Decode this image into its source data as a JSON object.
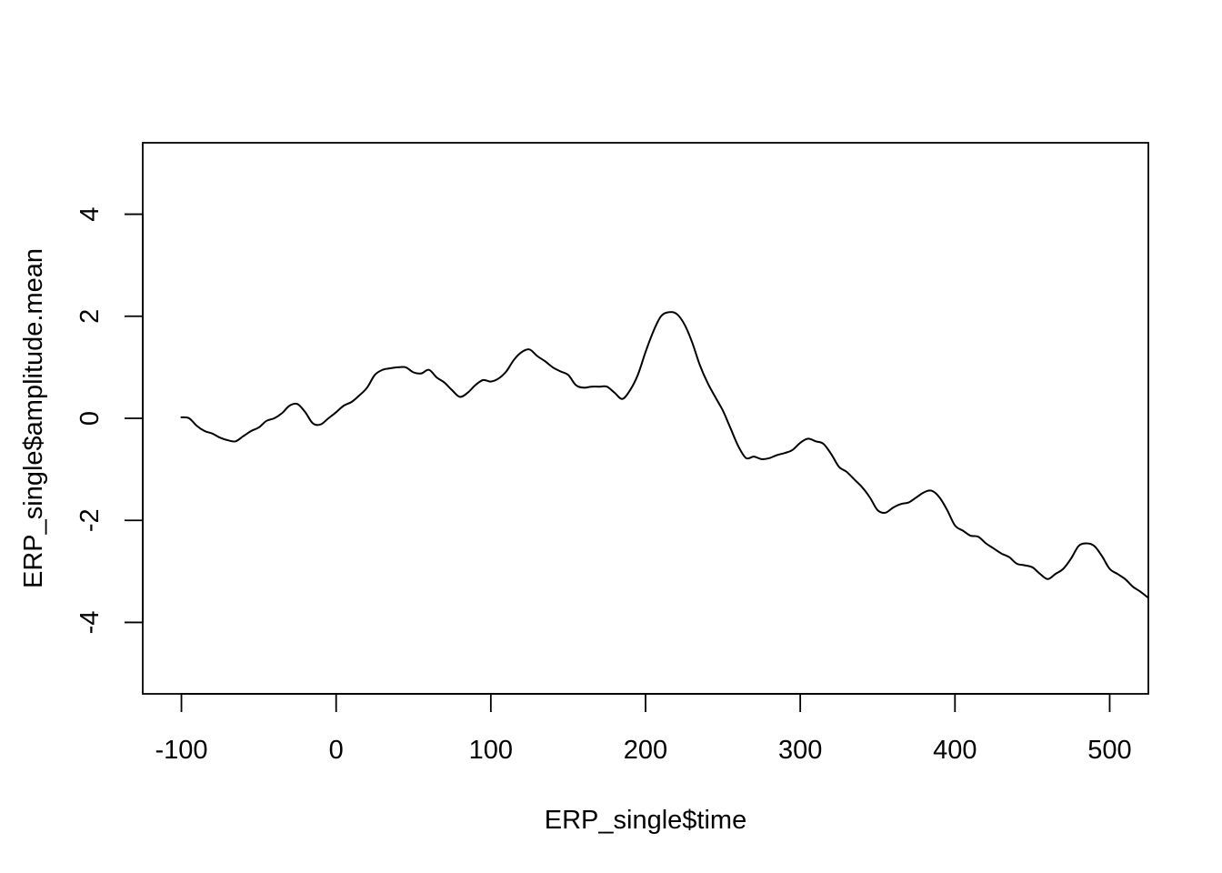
{
  "chart_data": {
    "type": "line",
    "title": "",
    "xlabel": "ERP_single$time",
    "ylabel": "ERP_single$amplitude.mean",
    "xlim": [
      -125,
      525
    ],
    "ylim": [
      -5.4,
      5.4
    ],
    "x_ticks": [
      -100,
      0,
      100,
      200,
      300,
      400,
      500
    ],
    "y_ticks": [
      -4,
      -2,
      0,
      2,
      4
    ],
    "grid": false,
    "legend": "none",
    "line_color": "#000000",
    "series": [
      {
        "x": [
          -100,
          -95,
          -90,
          -85,
          -80,
          -75,
          -70,
          -65,
          -60,
          -55,
          -50,
          -45,
          -40,
          -35,
          -30,
          -25,
          -20,
          -15,
          -10,
          -5,
          0,
          5,
          10,
          15,
          20,
          25,
          30,
          35,
          40,
          45,
          50,
          55,
          60,
          65,
          70,
          75,
          80,
          85,
          90,
          95,
          100,
          105,
          110,
          115,
          120,
          125,
          130,
          135,
          140,
          145,
          150,
          155,
          160,
          165,
          170,
          175,
          180,
          185,
          190,
          195,
          200,
          205,
          210,
          215,
          220,
          225,
          230,
          235,
          240,
          245,
          250,
          255,
          260,
          265,
          270,
          275,
          280,
          285,
          290,
          295,
          300,
          305,
          310,
          315,
          320,
          325,
          330,
          335,
          340,
          345,
          350,
          355,
          360,
          365,
          370,
          375,
          380,
          385,
          390,
          395,
          400,
          405,
          410,
          415,
          420,
          425,
          430,
          435,
          440,
          445,
          450,
          455,
          460,
          465,
          470,
          475,
          480,
          485,
          490,
          495,
          500,
          505,
          510,
          515,
          520,
          525
        ],
        "values": [
          0.02,
          0.0,
          -0.15,
          -0.25,
          -0.3,
          -0.38,
          -0.43,
          -0.45,
          -0.35,
          -0.25,
          -0.18,
          -0.05,
          0.0,
          0.1,
          0.25,
          0.28,
          0.12,
          -0.1,
          -0.12,
          0.0,
          0.12,
          0.25,
          0.32,
          0.45,
          0.6,
          0.85,
          0.95,
          0.98,
          1.0,
          1.0,
          0.9,
          0.88,
          0.95,
          0.8,
          0.7,
          0.55,
          0.42,
          0.5,
          0.65,
          0.75,
          0.72,
          0.78,
          0.92,
          1.15,
          1.3,
          1.35,
          1.22,
          1.12,
          1.0,
          0.92,
          0.85,
          0.65,
          0.6,
          0.62,
          0.62,
          0.62,
          0.5,
          0.38,
          0.55,
          0.85,
          1.3,
          1.7,
          2.0,
          2.08,
          2.05,
          1.85,
          1.5,
          1.05,
          0.7,
          0.42,
          0.15,
          -0.2,
          -0.55,
          -0.78,
          -0.75,
          -0.8,
          -0.78,
          -0.72,
          -0.68,
          -0.62,
          -0.48,
          -0.4,
          -0.45,
          -0.5,
          -0.7,
          -0.95,
          -1.05,
          -1.2,
          -1.35,
          -1.55,
          -1.8,
          -1.85,
          -1.75,
          -1.68,
          -1.65,
          -1.55,
          -1.45,
          -1.42,
          -1.55,
          -1.8,
          -2.1,
          -2.2,
          -2.3,
          -2.32,
          -2.45,
          -2.55,
          -2.65,
          -2.72,
          -2.85,
          -2.88,
          -2.92,
          -3.05,
          -3.15,
          -3.05,
          -2.95,
          -2.75,
          -2.5,
          -2.45,
          -2.5,
          -2.7,
          -2.95,
          -3.05,
          -3.15,
          -3.3,
          -3.4,
          -3.52
        ]
      }
    ]
  }
}
